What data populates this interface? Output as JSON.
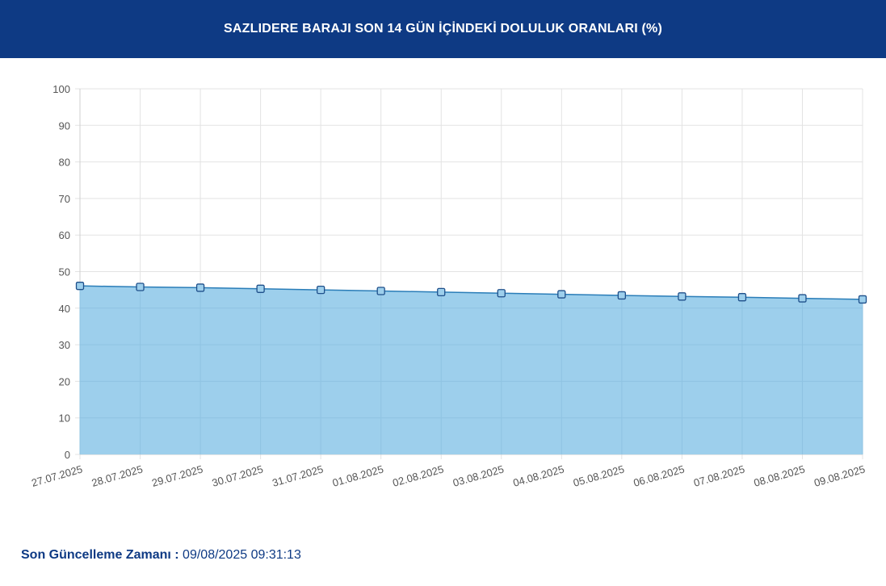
{
  "header": {
    "title": "SAZLIDERE BARAJI SON 14 GÜN İÇİNDEKİ DOLULUK ORANLARI (%)"
  },
  "chart_data": {
    "type": "area",
    "title": "SAZLIDERE BARAJI SON 14 GÜN İÇİNDEKİ DOLULUK ORANLARI (%)",
    "xlabel": "",
    "ylabel": "",
    "categories": [
      "27.07.2025",
      "28.07.2025",
      "29.07.2025",
      "30.07.2025",
      "31.07.2025",
      "01.08.2025",
      "02.08.2025",
      "03.08.2025",
      "04.08.2025",
      "05.08.2025",
      "06.08.2025",
      "07.08.2025",
      "08.08.2025",
      "09.08.2025"
    ],
    "values": [
      46.1,
      45.8,
      45.6,
      45.3,
      45.0,
      44.7,
      44.4,
      44.1,
      43.8,
      43.5,
      43.2,
      43.0,
      42.7,
      42.4
    ],
    "ylim": [
      0,
      100
    ],
    "yticks": [
      0,
      10,
      20,
      30,
      40,
      50,
      60,
      70,
      80,
      90,
      100
    ],
    "grid": true,
    "legend": "none",
    "colors": {
      "line": "#2a7db8",
      "fill": "#9dcfec",
      "marker_fill": "#9dcfec",
      "marker_stroke": "#1e4f8a",
      "grid": "#e3e3e3"
    }
  },
  "footer": {
    "label": "Son Güncelleme Zamanı",
    "separator": " : ",
    "value": "09/08/2025 09:31:13"
  }
}
